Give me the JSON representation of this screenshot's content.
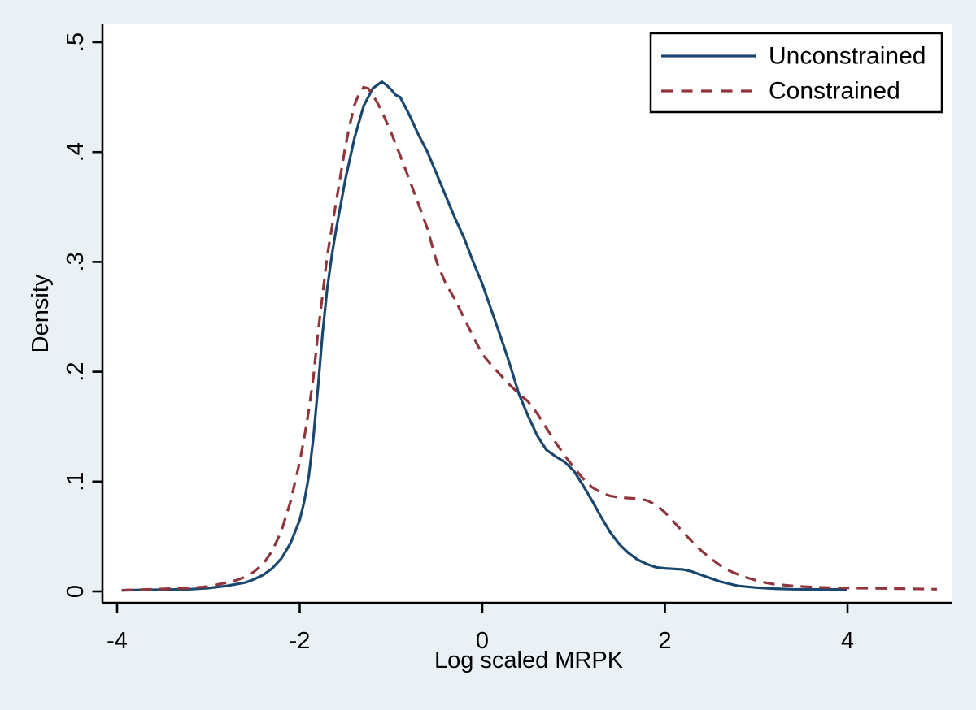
{
  "chart_data": {
    "type": "line",
    "title": "",
    "xlabel": "Log scaled MRPK",
    "ylabel": "Density",
    "background": "#eaf1f5",
    "plot_background": "#ffffff",
    "axis_color": "#000000",
    "grid": "off",
    "x_axis": {
      "range": [
        -4.15,
        5.15
      ],
      "ticks": [
        {
          "value": -4,
          "label": "-4"
        },
        {
          "value": -2,
          "label": "-2"
        },
        {
          "value": 0,
          "label": "0"
        },
        {
          "value": 2,
          "label": "2"
        },
        {
          "value": 4,
          "label": "4"
        }
      ]
    },
    "y_axis": {
      "range": [
        0,
        0.515
      ],
      "ticks": [
        {
          "value": 0.0,
          "label": "0"
        },
        {
          "value": 0.1,
          "label": ".1"
        },
        {
          "value": 0.2,
          "label": ".2"
        },
        {
          "value": 0.3,
          "label": ".3"
        },
        {
          "value": 0.4,
          "label": ".4"
        },
        {
          "value": 0.5,
          "label": ".5"
        }
      ]
    },
    "legend": {
      "position": "top-right"
    },
    "series": [
      {
        "name": "Unconstrained",
        "color": "#1a476f",
        "style": "solid",
        "points": [
          [
            -3.95,
            0.001
          ],
          [
            -3.6,
            0.0015
          ],
          [
            -3.2,
            0.002
          ],
          [
            -3.0,
            0.003
          ],
          [
            -2.8,
            0.005
          ],
          [
            -2.6,
            0.008
          ],
          [
            -2.5,
            0.011
          ],
          [
            -2.4,
            0.015
          ],
          [
            -2.3,
            0.021
          ],
          [
            -2.2,
            0.03
          ],
          [
            -2.1,
            0.044
          ],
          [
            -2.0,
            0.065
          ],
          [
            -1.95,
            0.082
          ],
          [
            -1.9,
            0.105
          ],
          [
            -1.85,
            0.14
          ],
          [
            -1.8,
            0.185
          ],
          [
            -1.75,
            0.235
          ],
          [
            -1.7,
            0.275
          ],
          [
            -1.65,
            0.305
          ],
          [
            -1.6,
            0.33
          ],
          [
            -1.5,
            0.375
          ],
          [
            -1.4,
            0.413
          ],
          [
            -1.3,
            0.442
          ],
          [
            -1.2,
            0.458
          ],
          [
            -1.1,
            0.464
          ],
          [
            -1.05,
            0.461
          ],
          [
            -1.0,
            0.457
          ],
          [
            -0.95,
            0.452
          ],
          [
            -0.9,
            0.45
          ],
          [
            -0.85,
            0.442
          ],
          [
            -0.8,
            0.434
          ],
          [
            -0.7,
            0.416
          ],
          [
            -0.6,
            0.4
          ],
          [
            -0.5,
            0.38
          ],
          [
            -0.4,
            0.36
          ],
          [
            -0.3,
            0.34
          ],
          [
            -0.2,
            0.322
          ],
          [
            -0.1,
            0.3
          ],
          [
            0.0,
            0.28
          ],
          [
            0.1,
            0.256
          ],
          [
            0.2,
            0.232
          ],
          [
            0.3,
            0.207
          ],
          [
            0.4,
            0.18
          ],
          [
            0.5,
            0.16
          ],
          [
            0.6,
            0.142
          ],
          [
            0.7,
            0.129
          ],
          [
            0.8,
            0.123
          ],
          [
            0.9,
            0.118
          ],
          [
            1.0,
            0.11
          ],
          [
            1.1,
            0.097
          ],
          [
            1.2,
            0.083
          ],
          [
            1.3,
            0.068
          ],
          [
            1.4,
            0.054
          ],
          [
            1.5,
            0.043
          ],
          [
            1.6,
            0.035
          ],
          [
            1.7,
            0.029
          ],
          [
            1.8,
            0.025
          ],
          [
            1.9,
            0.022
          ],
          [
            2.0,
            0.021
          ],
          [
            2.1,
            0.0205
          ],
          [
            2.2,
            0.02
          ],
          [
            2.3,
            0.018
          ],
          [
            2.4,
            0.015
          ],
          [
            2.5,
            0.012
          ],
          [
            2.6,
            0.009
          ],
          [
            2.8,
            0.005
          ],
          [
            3.0,
            0.0035
          ],
          [
            3.2,
            0.0025
          ],
          [
            3.4,
            0.002
          ],
          [
            3.7,
            0.0018
          ],
          [
            4.0,
            0.0018
          ]
        ]
      },
      {
        "name": "Constrained",
        "color": "#90353b",
        "style": "dashed",
        "points": [
          [
            -3.95,
            0.001
          ],
          [
            -3.6,
            0.002
          ],
          [
            -3.2,
            0.003
          ],
          [
            -3.0,
            0.0045
          ],
          [
            -2.8,
            0.008
          ],
          [
            -2.7,
            0.01
          ],
          [
            -2.6,
            0.013
          ],
          [
            -2.5,
            0.018
          ],
          [
            -2.4,
            0.025
          ],
          [
            -2.3,
            0.037
          ],
          [
            -2.2,
            0.055
          ],
          [
            -2.1,
            0.082
          ],
          [
            -2.0,
            0.118
          ],
          [
            -1.95,
            0.14
          ],
          [
            -1.9,
            0.165
          ],
          [
            -1.85,
            0.195
          ],
          [
            -1.8,
            0.235
          ],
          [
            -1.75,
            0.27
          ],
          [
            -1.7,
            0.305
          ],
          [
            -1.65,
            0.33
          ],
          [
            -1.6,
            0.355
          ],
          [
            -1.5,
            0.405
          ],
          [
            -1.45,
            0.425
          ],
          [
            -1.4,
            0.443
          ],
          [
            -1.35,
            0.453
          ],
          [
            -1.3,
            0.459
          ],
          [
            -1.25,
            0.458
          ],
          [
            -1.2,
            0.452
          ],
          [
            -1.15,
            0.445
          ],
          [
            -1.1,
            0.437
          ],
          [
            -1.0,
            0.418
          ],
          [
            -0.9,
            0.397
          ],
          [
            -0.8,
            0.375
          ],
          [
            -0.7,
            0.353
          ],
          [
            -0.6,
            0.33
          ],
          [
            -0.5,
            0.3
          ],
          [
            -0.4,
            0.28
          ],
          [
            -0.3,
            0.266
          ],
          [
            -0.2,
            0.249
          ],
          [
            -0.1,
            0.232
          ],
          [
            0.0,
            0.216
          ],
          [
            0.1,
            0.206
          ],
          [
            0.2,
            0.197
          ],
          [
            0.3,
            0.188
          ],
          [
            0.4,
            0.18
          ],
          [
            0.5,
            0.173
          ],
          [
            0.6,
            0.162
          ],
          [
            0.7,
            0.149
          ],
          [
            0.8,
            0.136
          ],
          [
            0.9,
            0.124
          ],
          [
            1.0,
            0.113
          ],
          [
            1.1,
            0.103
          ],
          [
            1.2,
            0.095
          ],
          [
            1.3,
            0.09
          ],
          [
            1.4,
            0.087
          ],
          [
            1.5,
            0.0855
          ],
          [
            1.6,
            0.085
          ],
          [
            1.7,
            0.0845
          ],
          [
            1.8,
            0.083
          ],
          [
            1.9,
            0.079
          ],
          [
            2.0,
            0.072
          ],
          [
            2.1,
            0.063
          ],
          [
            2.2,
            0.054
          ],
          [
            2.3,
            0.045
          ],
          [
            2.4,
            0.037
          ],
          [
            2.5,
            0.03
          ],
          [
            2.6,
            0.024
          ],
          [
            2.7,
            0.019
          ],
          [
            2.8,
            0.0155
          ],
          [
            2.9,
            0.0125
          ],
          [
            3.0,
            0.01
          ],
          [
            3.1,
            0.008
          ],
          [
            3.2,
            0.0065
          ],
          [
            3.4,
            0.005
          ],
          [
            3.6,
            0.004
          ],
          [
            3.8,
            0.0035
          ],
          [
            4.0,
            0.0032
          ],
          [
            4.3,
            0.0028
          ],
          [
            4.6,
            0.0025
          ],
          [
            4.98,
            0.002
          ]
        ]
      }
    ]
  }
}
